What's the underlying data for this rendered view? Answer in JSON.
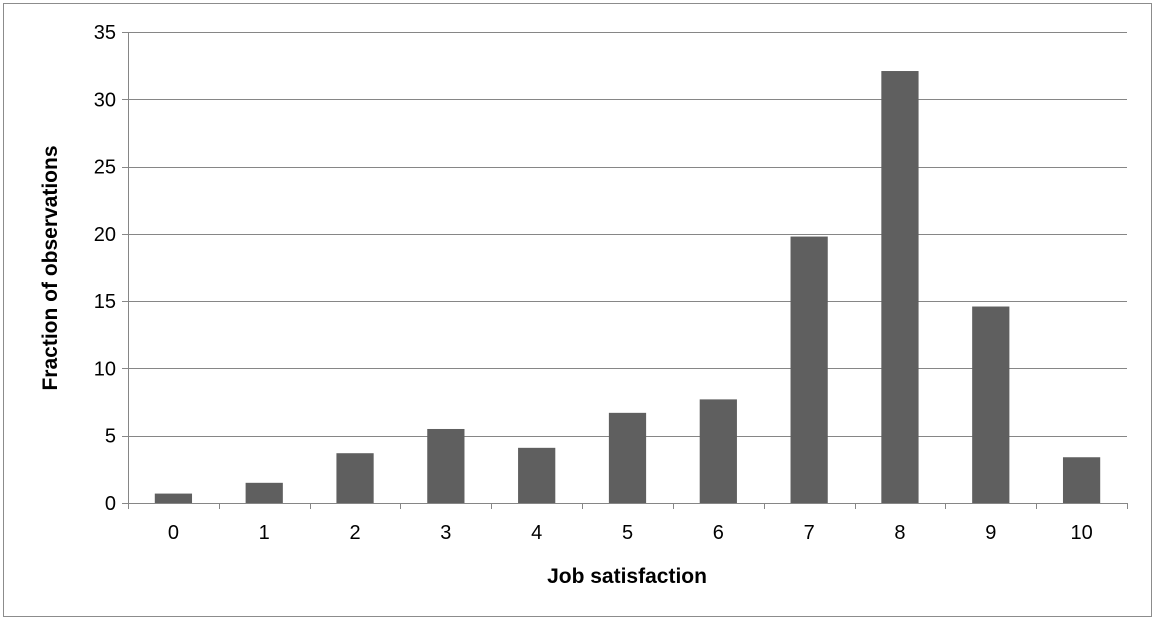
{
  "chart_data": {
    "type": "bar",
    "title": "",
    "xlabel": "Job satisfaction",
    "ylabel": "Fraction of observations",
    "categories": [
      "0",
      "1",
      "2",
      "3",
      "4",
      "5",
      "6",
      "7",
      "8",
      "9",
      "10"
    ],
    "values": [
      0.7,
      1.5,
      3.7,
      5.5,
      4.1,
      6.7,
      7.7,
      19.8,
      32.1,
      14.6,
      3.4
    ],
    "ylim": [
      0,
      35
    ],
    "yticks": [
      "0",
      "5",
      "10",
      "15",
      "20",
      "25",
      "30",
      "35"
    ],
    "grid": true,
    "legend": "none",
    "bar_color": "#5f5f5f",
    "grid_color": "#868686"
  }
}
